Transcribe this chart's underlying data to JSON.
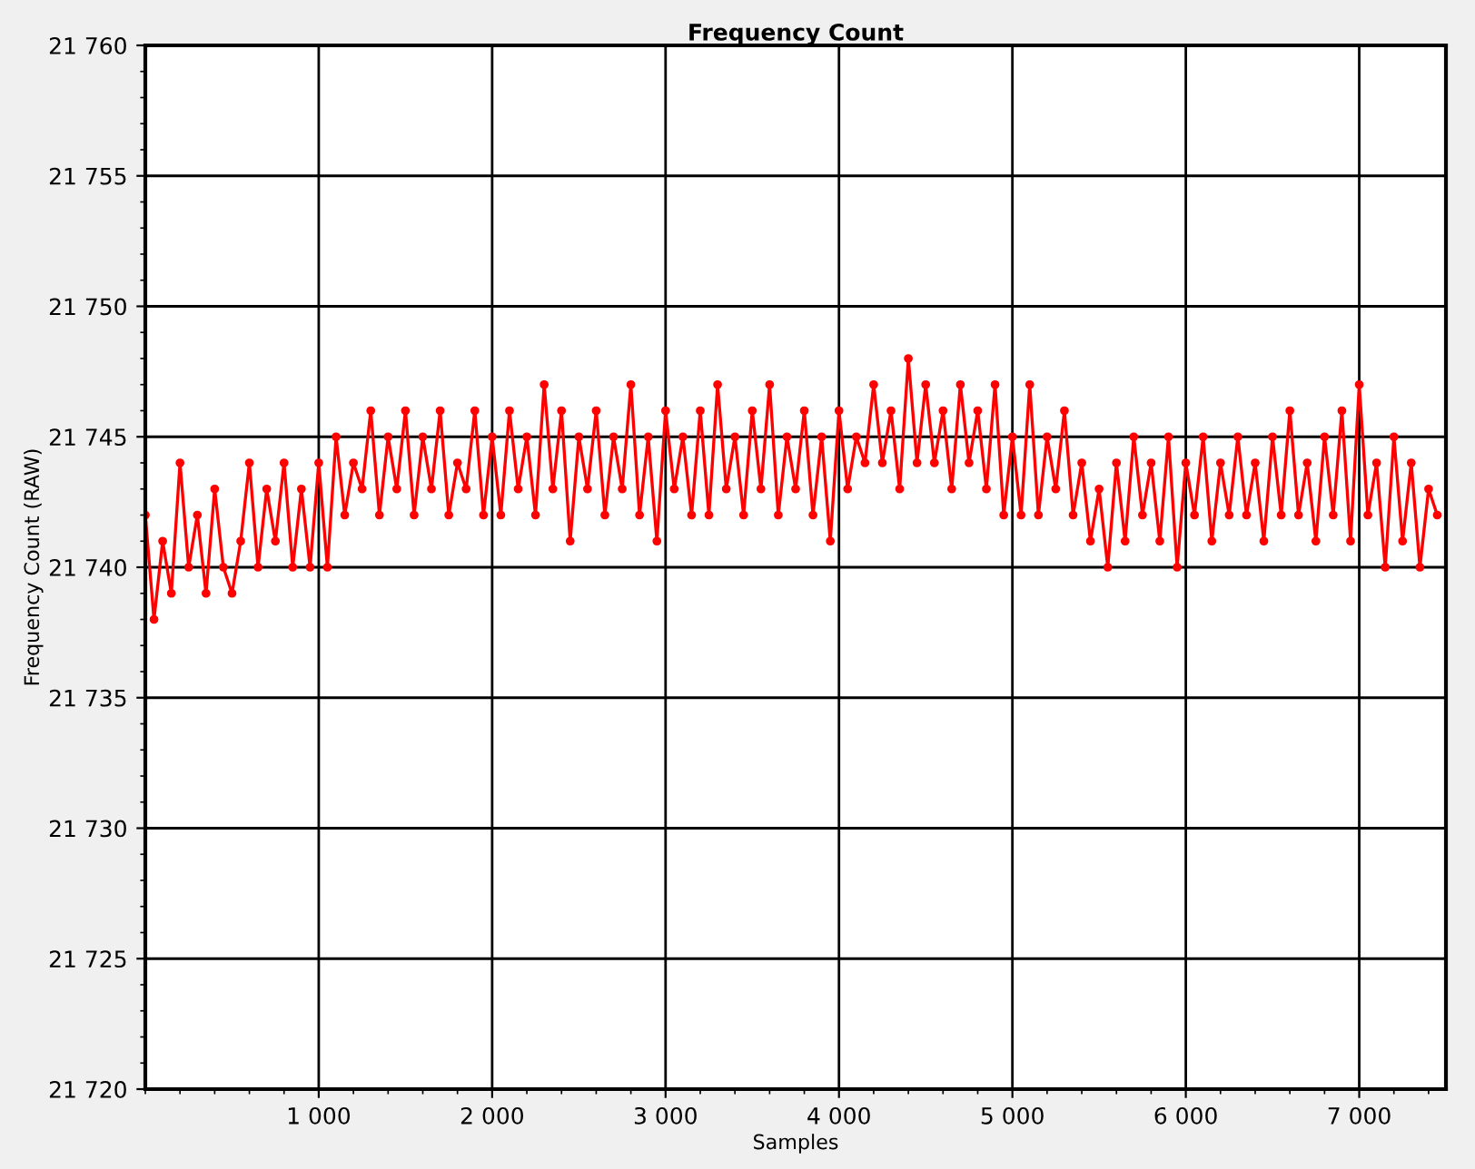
{
  "chart_data": {
    "type": "line",
    "title": "Frequency Count",
    "xlabel": "Samples",
    "ylabel": "Frequency Count (RAW)",
    "x": [
      0,
      50,
      100,
      150,
      200,
      250,
      300,
      350,
      400,
      450,
      500,
      550,
      600,
      650,
      700,
      750,
      800,
      850,
      900,
      950,
      1000,
      1050,
      1100,
      1150,
      1200,
      1250,
      1300,
      1350,
      1400,
      1450,
      1500,
      1550,
      1600,
      1650,
      1700,
      1750,
      1800,
      1850,
      1900,
      1950,
      2000,
      2050,
      2100,
      2150,
      2200,
      2250,
      2300,
      2350,
      2400,
      2450,
      2500,
      2550,
      2600,
      2650,
      2700,
      2750,
      2800,
      2850,
      2900,
      2950,
      3000,
      3050,
      3100,
      3150,
      3200,
      3250,
      3300,
      3350,
      3400,
      3450,
      3500,
      3550,
      3600,
      3650,
      3700,
      3750,
      3800,
      3850,
      3900,
      3950,
      4000,
      4050,
      4100,
      4150,
      4200,
      4250,
      4300,
      4350,
      4400,
      4450,
      4500,
      4550,
      4600,
      4650,
      4700,
      4750,
      4800,
      4850,
      4900,
      4950,
      5000,
      5050,
      5100,
      5150,
      5200,
      5250,
      5300,
      5350,
      5400,
      5450,
      5500,
      5550,
      5600,
      5650,
      5700,
      5750,
      5800,
      5850,
      5900,
      5950,
      6000,
      6050,
      6100,
      6150,
      6200,
      6250,
      6300,
      6350,
      6400,
      6450,
      6500,
      6550,
      6600,
      6650,
      6700,
      6750,
      6800,
      6850,
      6900,
      6950,
      7000,
      7050,
      7100,
      7150,
      7200,
      7250,
      7300,
      7350,
      7400,
      7450
    ],
    "series": [
      {
        "color": "#ff0000",
        "values": [
          21742,
          21738,
          21741,
          21739,
          21744,
          21740,
          21742,
          21739,
          21743,
          21740,
          21739,
          21741,
          21744,
          21740,
          21743,
          21741,
          21744,
          21740,
          21743,
          21740,
          21744,
          21740,
          21745,
          21742,
          21744,
          21743,
          21746,
          21742,
          21745,
          21743,
          21746,
          21742,
          21745,
          21743,
          21746,
          21742,
          21744,
          21743,
          21746,
          21742,
          21745,
          21742,
          21746,
          21743,
          21745,
          21742,
          21747,
          21743,
          21746,
          21741,
          21745,
          21743,
          21746,
          21742,
          21745,
          21743,
          21747,
          21742,
          21745,
          21741,
          21746,
          21743,
          21745,
          21742,
          21746,
          21742,
          21747,
          21743,
          21745,
          21742,
          21746,
          21743,
          21747,
          21742,
          21745,
          21743,
          21746,
          21742,
          21745,
          21741,
          21746,
          21743,
          21745,
          21744,
          21747,
          21744,
          21746,
          21743,
          21748,
          21744,
          21747,
          21744,
          21746,
          21743,
          21747,
          21744,
          21746,
          21743,
          21747,
          21742,
          21745,
          21742,
          21747,
          21742,
          21745,
          21743,
          21746,
          21742,
          21744,
          21741,
          21743,
          21740,
          21744,
          21741,
          21745,
          21742,
          21744,
          21741,
          21745,
          21740,
          21744,
          21742,
          21745,
          21741,
          21744,
          21742,
          21745,
          21742,
          21744,
          21741,
          21745,
          21742,
          21746,
          21742,
          21744,
          21741,
          21745,
          21742,
          21746,
          21741,
          21747,
          21742,
          21744,
          21740,
          21745,
          21741,
          21744,
          21740,
          21743,
          21742
        ]
      }
    ],
    "xlim": [
      0,
      7500
    ],
    "xticks": [
      {
        "value": 1000,
        "label": "1 000"
      },
      {
        "value": 2000,
        "label": "2 000"
      },
      {
        "value": 3000,
        "label": "3 000"
      },
      {
        "value": 4000,
        "label": "4 000"
      },
      {
        "value": 5000,
        "label": "5 000"
      },
      {
        "value": 6000,
        "label": "6 000"
      },
      {
        "value": 7000,
        "label": "7 000"
      }
    ],
    "ylim": [
      21720,
      21760
    ],
    "yticks": [
      {
        "value": 21720,
        "label": "21 720"
      },
      {
        "value": 21725,
        "label": "21 725"
      },
      {
        "value": 21730,
        "label": "21 730"
      },
      {
        "value": 21735,
        "label": "21 735"
      },
      {
        "value": 21740,
        "label": "21 740"
      },
      {
        "value": 21745,
        "label": "21 745"
      },
      {
        "value": 21750,
        "label": "21 750"
      },
      {
        "value": 21755,
        "label": "21 755"
      },
      {
        "value": 21760,
        "label": "21 760"
      }
    ],
    "grid": true,
    "marker": "circle",
    "line_style": "solid"
  }
}
